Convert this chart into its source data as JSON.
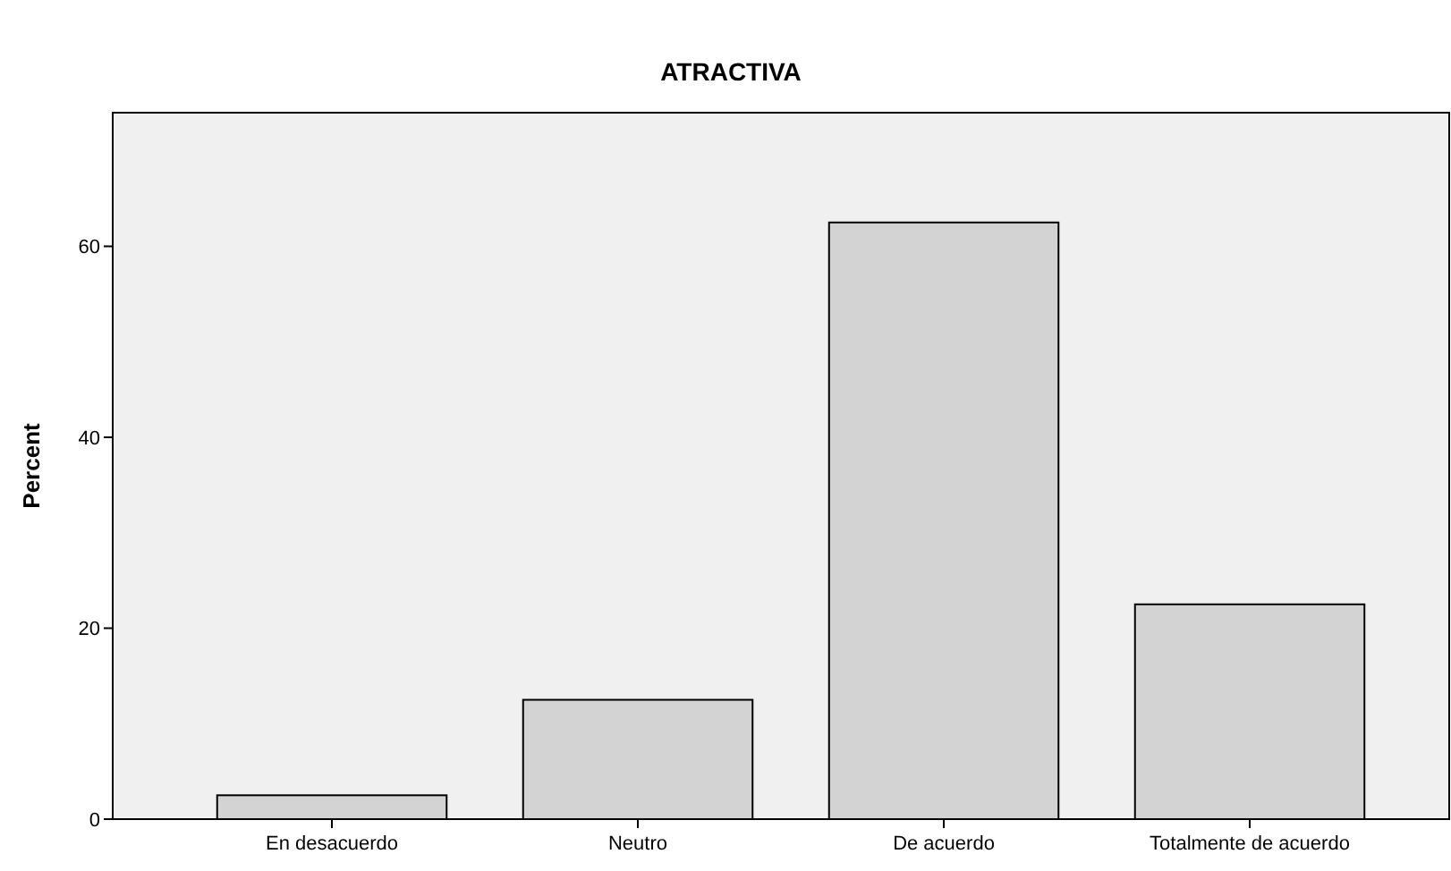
{
  "chart_data": {
    "type": "bar",
    "title": "ATRACTIVA",
    "ylabel": "Percent",
    "categories": [
      "En desacuerdo",
      "Neutro",
      "De acuerdo",
      "Totalmente de acuerdo"
    ],
    "values": [
      2.5,
      12.5,
      62.5,
      22.5
    ],
    "color": "#d3d3d3",
    "ylim": [
      0,
      74
    ],
    "yticks": [
      0,
      20,
      40,
      60
    ]
  }
}
